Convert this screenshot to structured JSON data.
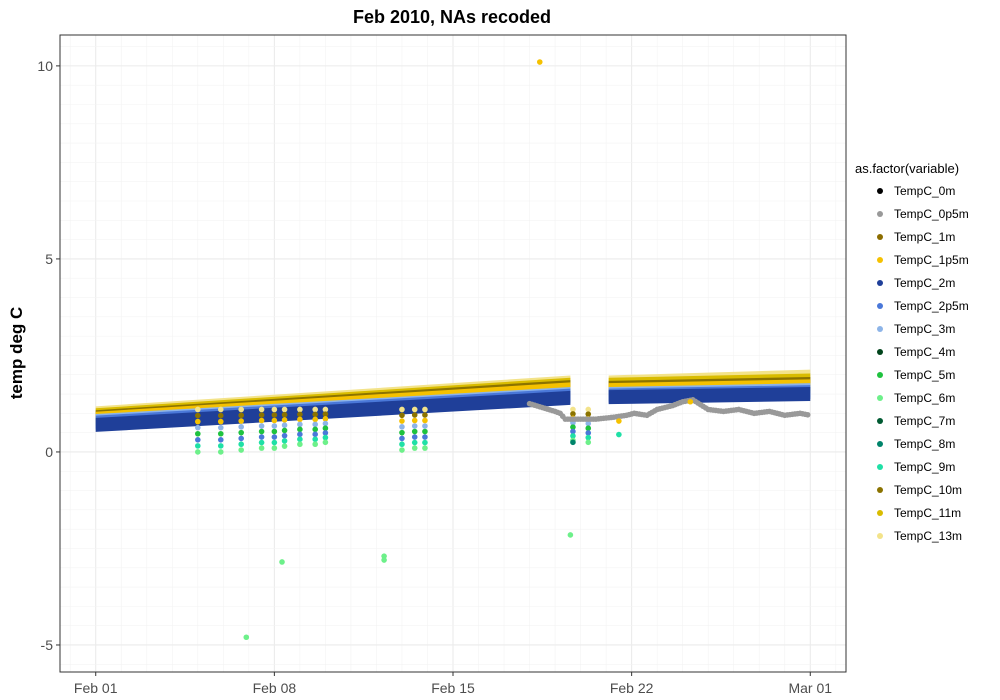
{
  "chart_data": {
    "type": "scatter",
    "title": "Feb 2010, NAs recoded",
    "xlabel": "",
    "ylabel": "temp deg C",
    "x_tick_labels": [
      "Feb 01",
      "Feb 08",
      "Feb 15",
      "Feb 22",
      "Mar 01"
    ],
    "x_tick_days": [
      0,
      7,
      14,
      21,
      28
    ],
    "xlim_days": [
      -1.4,
      29.4
    ],
    "y_ticks": [
      -5,
      0,
      5,
      10
    ],
    "y_tick_labels": [
      "-5",
      "0",
      "5",
      "10"
    ],
    "ylim": [
      -5.7,
      10.8
    ],
    "grid": true,
    "legend_title": "as.factor(variable)",
    "legend_position": "right",
    "series": [
      {
        "name": "TempC_0m",
        "color": "#000000"
      },
      {
        "name": "TempC_0p5m",
        "color": "#999999"
      },
      {
        "name": "TempC_1m",
        "color": "#8c6d00"
      },
      {
        "name": "TempC_1p5m",
        "color": "#f5c100"
      },
      {
        "name": "TempC_2m",
        "color": "#1f3f99"
      },
      {
        "name": "TempC_2p5m",
        "color": "#4a78d9"
      },
      {
        "name": "TempC_3m",
        "color": "#8db4e8"
      },
      {
        "name": "TempC_4m",
        "color": "#00441b"
      },
      {
        "name": "TempC_5m",
        "color": "#1fc23f"
      },
      {
        "name": "TempC_6m",
        "color": "#6df08a"
      },
      {
        "name": "TempC_7m",
        "color": "#005a32"
      },
      {
        "name": "TempC_8m",
        "color": "#00846b"
      },
      {
        "name": "TempC_9m",
        "color": "#1fe0a6"
      },
      {
        "name": "TempC_10m",
        "color": "#8b7300"
      },
      {
        "name": "TempC_11m",
        "color": "#d9bc00"
      },
      {
        "name": "TempC_13m",
        "color": "#f3e38a"
      }
    ],
    "bands": [
      {
        "series": "TempC_13m",
        "segments": [
          [
            0,
            1.0,
            18.6,
            1.8
          ],
          [
            20.1,
            1.8,
            28.0,
            1.95
          ]
        ]
      },
      {
        "series": "TempC_11m",
        "segments": [
          [
            0,
            0.95,
            18.6,
            1.74
          ],
          [
            20.1,
            1.74,
            28.0,
            1.85
          ]
        ]
      },
      {
        "series": "TempC_10m",
        "segments": [
          [
            0,
            0.9,
            18.6,
            1.68
          ],
          [
            20.1,
            1.66,
            28.0,
            1.76
          ]
        ]
      },
      {
        "series": "TempC_1p5m",
        "segments": [
          [
            0,
            0.86,
            18.6,
            1.62
          ],
          [
            20.1,
            1.6,
            28.0,
            1.7
          ]
        ]
      },
      {
        "series": "TempC_3m",
        "segments": [
          [
            0,
            0.8,
            18.6,
            1.5
          ],
          [
            20.1,
            1.5,
            28.0,
            1.6
          ]
        ]
      },
      {
        "series": "TempC_2p5m",
        "segments": [
          [
            0,
            0.76,
            18.6,
            1.46
          ],
          [
            20.1,
            1.46,
            28.0,
            1.55
          ]
        ]
      },
      {
        "series": "TempC_2m",
        "segments": [
          [
            0,
            0.7,
            18.6,
            1.4
          ],
          [
            20.1,
            1.42,
            28.0,
            1.5
          ]
        ]
      }
    ],
    "dips": [
      {
        "day": 4.0,
        "low": 0.0
      },
      {
        "day": 4.9,
        "low": 0.0
      },
      {
        "day": 5.7,
        "low": 0.05
      },
      {
        "day": 6.5,
        "low": 0.1
      },
      {
        "day": 7.0,
        "low": 0.1
      },
      {
        "day": 7.4,
        "low": 0.15
      },
      {
        "day": 8.0,
        "low": 0.2
      },
      {
        "day": 8.6,
        "low": 0.2
      },
      {
        "day": 9.0,
        "low": 0.25
      },
      {
        "day": 12.0,
        "low": 0.05
      },
      {
        "day": 12.5,
        "low": 0.1
      },
      {
        "day": 12.9,
        "low": 0.1
      },
      {
        "day": 18.7,
        "low": 0.3
      },
      {
        "day": 19.3,
        "low": 0.25
      }
    ],
    "grey_trace": [
      {
        "day": 17.0,
        "y": 1.25
      },
      {
        "day": 17.5,
        "y": 1.15
      },
      {
        "day": 18.0,
        "y": 1.05
      },
      {
        "day": 18.2,
        "y": 1.0
      },
      {
        "day": 18.4,
        "y": 0.85
      },
      {
        "day": 18.8,
        "y": 0.85
      },
      {
        "day": 19.6,
        "y": 0.85
      },
      {
        "day": 20.3,
        "y": 0.9
      },
      {
        "day": 20.8,
        "y": 0.95
      },
      {
        "day": 21.1,
        "y": 1.0
      },
      {
        "day": 21.6,
        "y": 0.95
      },
      {
        "day": 22.0,
        "y": 1.1
      },
      {
        "day": 22.6,
        "y": 1.2
      },
      {
        "day": 23.0,
        "y": 1.3
      },
      {
        "day": 23.4,
        "y": 1.35
      },
      {
        "day": 24.0,
        "y": 1.1
      },
      {
        "day": 24.6,
        "y": 1.05
      },
      {
        "day": 25.2,
        "y": 1.1
      },
      {
        "day": 25.8,
        "y": 1.0
      },
      {
        "day": 26.4,
        "y": 1.05
      },
      {
        "day": 27.0,
        "y": 0.95
      },
      {
        "day": 27.6,
        "y": 1.0
      },
      {
        "day": 28.0,
        "y": 0.95
      }
    ],
    "outliers": [
      {
        "series": "TempC_1p5m",
        "day": 17.4,
        "y": 10.1
      },
      {
        "series": "TempC_6m",
        "day": 5.9,
        "y": -4.8
      },
      {
        "series": "TempC_6m",
        "day": 7.3,
        "y": -2.85
      },
      {
        "series": "TempC_6m",
        "day": 11.3,
        "y": -2.7
      },
      {
        "series": "TempC_6m",
        "day": 11.3,
        "y": -2.8
      },
      {
        "series": "TempC_6m",
        "day": 18.6,
        "y": -2.15
      },
      {
        "series": "TempC_9m",
        "day": 20.5,
        "y": 0.45
      },
      {
        "series": "TempC_8m",
        "day": 18.7,
        "y": 0.25
      },
      {
        "series": "TempC_1p5m",
        "day": 20.5,
        "y": 0.8
      },
      {
        "series": "TempC_1p5m",
        "day": 23.3,
        "y": 1.3
      }
    ]
  }
}
